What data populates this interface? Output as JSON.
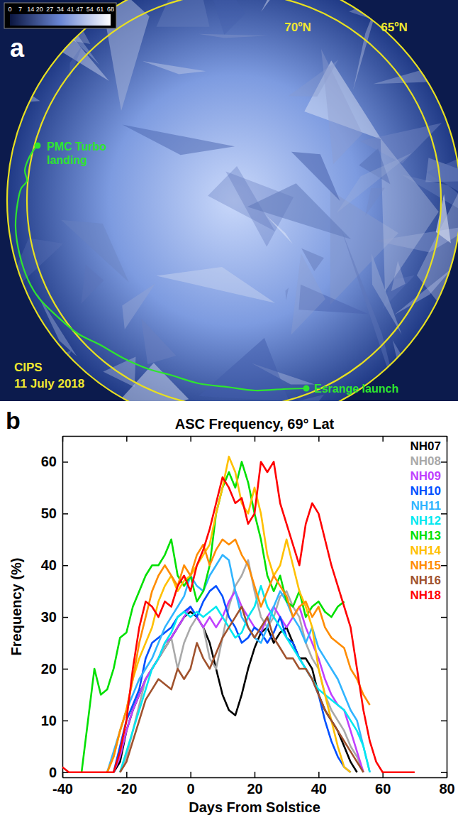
{
  "panel_a": {
    "label": "a",
    "colorbar": {
      "range": [
        0,
        68
      ],
      "ticks": [
        0,
        7,
        14,
        20,
        27,
        34,
        41,
        47,
        54,
        61,
        68
      ]
    },
    "circles": [
      {
        "lat": 70,
        "label": "70ºN"
      },
      {
        "lat": 65,
        "label": "65ºN"
      }
    ],
    "annotations": {
      "landing": "PMC Turbo landing",
      "launch": "Esrange launch",
      "instrument": "CIPS",
      "date": "11 July 2018"
    }
  },
  "chart_data": {
    "panel_label": "b",
    "type": "line",
    "title": "ASC Frequency, 69° Lat",
    "x_label": "Days From Solstice",
    "y_label": "Frequency (%)",
    "xlim": [
      -40,
      80
    ],
    "xticks": [
      -40,
      -20,
      0,
      20,
      40,
      60,
      80
    ],
    "ylim": [
      -1,
      65
    ],
    "yticks": [
      0,
      10,
      20,
      30,
      40,
      50,
      60
    ],
    "legend": "upper right",
    "x": [
      -40,
      -38,
      -36,
      -34,
      -32,
      -30,
      -28,
      -26,
      -24,
      -22,
      -20,
      -18,
      -16,
      -14,
      -12,
      -10,
      -8,
      -6,
      -4,
      -2,
      0,
      2,
      4,
      6,
      8,
      10,
      12,
      14,
      16,
      18,
      20,
      22,
      24,
      26,
      28,
      30,
      32,
      34,
      36,
      38,
      40,
      42,
      44,
      46,
      48,
      50,
      52,
      54,
      56,
      58,
      60,
      62,
      64,
      66,
      68,
      70
    ],
    "series": [
      {
        "name": "NH07",
        "color": "#000000",
        "values": [
          null,
          null,
          null,
          null,
          null,
          null,
          null,
          null,
          0,
          2,
          8,
          12,
          15,
          18,
          20,
          22,
          24,
          26,
          28,
          30,
          31,
          30,
          28,
          25,
          20,
          15,
          12,
          11,
          15,
          20,
          24,
          27,
          28,
          25,
          27,
          28,
          25,
          22,
          22,
          20,
          15,
          12,
          10,
          8,
          5,
          2,
          0,
          null,
          null,
          null,
          null,
          null,
          null,
          null,
          null,
          null
        ]
      },
      {
        "name": "NH08",
        "color": "#a9a9a9",
        "values": [
          null,
          null,
          null,
          null,
          null,
          null,
          null,
          null,
          null,
          0,
          3,
          8,
          13,
          18,
          20,
          22,
          24,
          26,
          20,
          25,
          28,
          30,
          28,
          22,
          20,
          26,
          32,
          36,
          38,
          41,
          35,
          30,
          28,
          30,
          34,
          35,
          32,
          30,
          25,
          22,
          20,
          15,
          12,
          10,
          8,
          5,
          3,
          0,
          null,
          null,
          null,
          null,
          null,
          null,
          null,
          null
        ]
      },
      {
        "name": "NH09",
        "color": "#c040ff",
        "values": [
          null,
          null,
          null,
          null,
          null,
          null,
          null,
          null,
          0,
          3,
          8,
          12,
          15,
          18,
          20,
          22,
          25,
          26,
          28,
          30,
          32,
          30,
          28,
          30,
          28,
          30,
          33,
          35,
          32,
          30,
          28,
          27,
          30,
          32,
          30,
          28,
          30,
          32,
          28,
          25,
          22,
          18,
          15,
          13,
          12,
          8,
          4,
          0,
          null,
          null,
          null,
          null,
          null,
          null,
          null,
          null
        ]
      },
      {
        "name": "NH10",
        "color": "#0050ff",
        "values": [
          null,
          null,
          null,
          null,
          null,
          null,
          null,
          null,
          0,
          5,
          10,
          13,
          16,
          22,
          25,
          26,
          27,
          28,
          30,
          31,
          32,
          30,
          33,
          35,
          36,
          34,
          30,
          28,
          25,
          26,
          28,
          27,
          25,
          27,
          30,
          26,
          25,
          22,
          20,
          18,
          15,
          10,
          6,
          3,
          1,
          0,
          null,
          null,
          null,
          null,
          null,
          null,
          null,
          null,
          null,
          null
        ]
      },
      {
        "name": "NH11",
        "color": "#30b4ff",
        "values": [
          null,
          null,
          null,
          null,
          null,
          null,
          null,
          0,
          4,
          8,
          12,
          15,
          18,
          20,
          22,
          25,
          28,
          30,
          32,
          34,
          38,
          36,
          35,
          38,
          40,
          42,
          41,
          35,
          30,
          28,
          26,
          25,
          28,
          32,
          35,
          33,
          30,
          28,
          25,
          28,
          24,
          22,
          20,
          18,
          15,
          12,
          10,
          5,
          0,
          null,
          null,
          null,
          null,
          null,
          null,
          null
        ]
      },
      {
        "name": "NH12",
        "color": "#00e8f0",
        "values": [
          null,
          null,
          null,
          null,
          null,
          null,
          null,
          null,
          null,
          0,
          4,
          8,
          12,
          16,
          20,
          22,
          25,
          27,
          30,
          31,
          30,
          31,
          30,
          31,
          32,
          30,
          28,
          26,
          27,
          30,
          32,
          36,
          32,
          30,
          28,
          26,
          24,
          22,
          20,
          18,
          16,
          15,
          14,
          13,
          12,
          10,
          8,
          5,
          0,
          null,
          null,
          null,
          null,
          null,
          null,
          null
        ]
      },
      {
        "name": "NH13",
        "color": "#00e000",
        "values": [
          null,
          null,
          null,
          0,
          10,
          20,
          15,
          16,
          20,
          26,
          27,
          32,
          35,
          38,
          40,
          40,
          42,
          45,
          38,
          36,
          38,
          33,
          35,
          40,
          50,
          55,
          58,
          55,
          60,
          56,
          50,
          45,
          38,
          35,
          38,
          33,
          32,
          35,
          30,
          32,
          33,
          31,
          30,
          32,
          33,
          null,
          null,
          null,
          null,
          null,
          null,
          null,
          null,
          null,
          null,
          null
        ]
      },
      {
        "name": "NH14",
        "color": "#ffc000",
        "values": [
          null,
          null,
          null,
          null,
          null,
          null,
          null,
          0,
          3,
          8,
          12,
          18,
          22,
          25,
          28,
          33,
          36,
          38,
          35,
          37,
          38,
          40,
          42,
          44,
          50,
          55,
          61,
          58,
          52,
          50,
          55,
          50,
          42,
          38,
          40,
          45,
          40,
          35,
          32,
          28,
          20,
          15,
          10,
          5,
          1,
          0,
          null,
          null,
          null,
          null,
          null,
          null,
          null,
          null,
          null,
          null
        ]
      },
      {
        "name": "NH15",
        "color": "#ff8c00",
        "values": [
          null,
          null,
          null,
          null,
          null,
          null,
          null,
          0,
          3,
          8,
          12,
          18,
          25,
          30,
          35,
          38,
          40,
          38,
          36,
          40,
          38,
          42,
          44,
          40,
          43,
          45,
          44,
          45,
          42,
          40,
          36,
          32,
          35,
          38,
          36,
          34,
          30,
          32,
          33,
          30,
          32,
          28,
          26,
          25,
          24,
          20,
          18,
          15,
          13,
          null,
          null,
          null,
          null,
          null,
          null,
          null
        ]
      },
      {
        "name": "NH16",
        "color": "#a0522d",
        "values": [
          null,
          null,
          null,
          null,
          null,
          null,
          null,
          null,
          null,
          0,
          2,
          6,
          10,
          14,
          16,
          18,
          17,
          16,
          20,
          18,
          20,
          25,
          22,
          20,
          23,
          26,
          28,
          30,
          32,
          28,
          26,
          28,
          30,
          26,
          24,
          22,
          22,
          20,
          20,
          18,
          15,
          12,
          10,
          8,
          6,
          4,
          2,
          0,
          null,
          null,
          null,
          null,
          null,
          null,
          null,
          null
        ]
      },
      {
        "name": "NH18",
        "color": "#ff0000",
        "values": [
          1,
          0,
          0,
          0,
          0,
          0,
          0,
          0,
          0,
          4,
          10,
          20,
          28,
          33,
          32,
          30,
          33,
          32,
          36,
          38,
          35,
          40,
          43,
          47,
          52,
          57,
          55,
          52,
          53,
          48,
          50,
          60,
          58,
          60,
          52,
          48,
          44,
          40,
          48,
          52,
          50,
          45,
          40,
          36,
          32,
          28,
          20,
          12,
          6,
          2,
          0,
          0,
          0,
          0,
          0,
          0
        ]
      }
    ]
  }
}
